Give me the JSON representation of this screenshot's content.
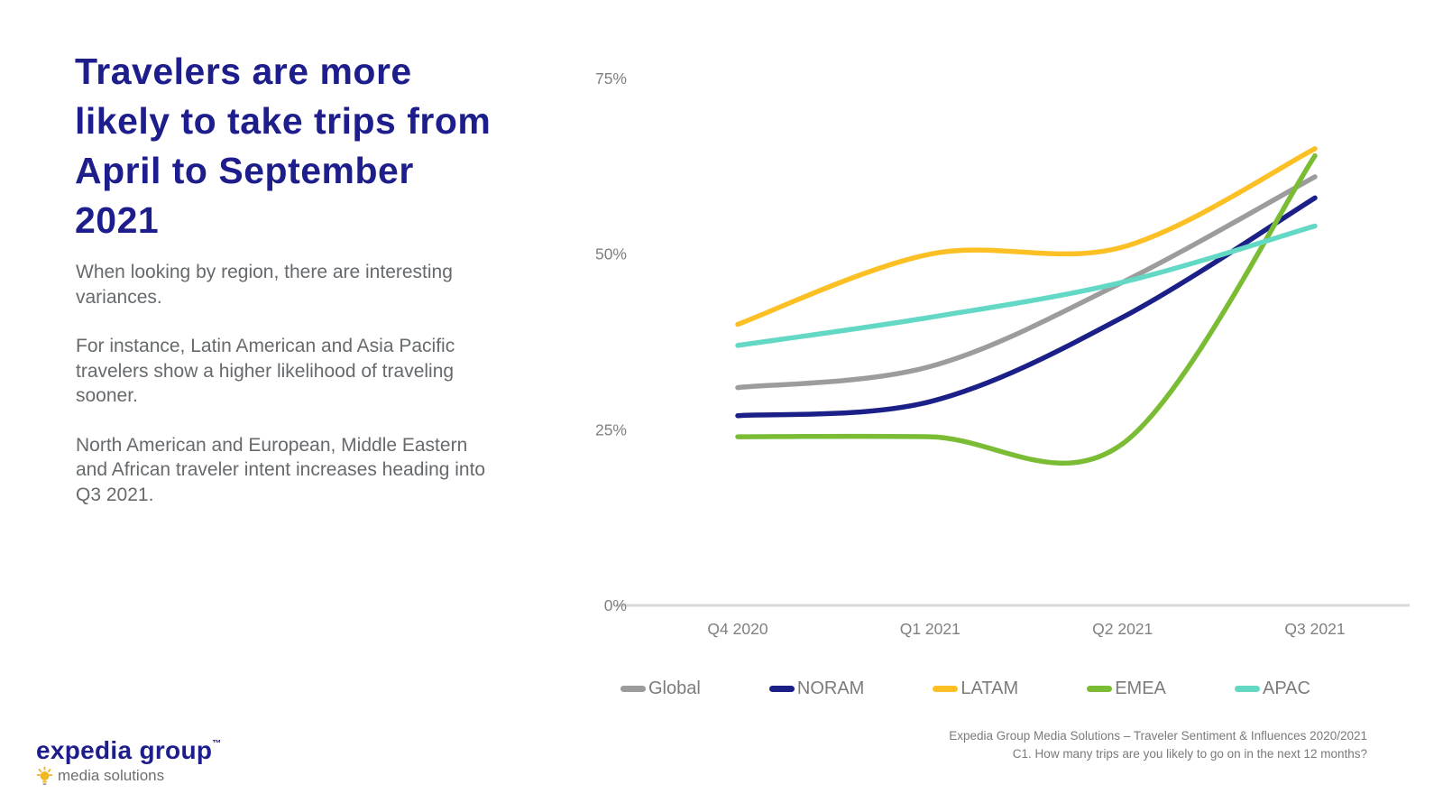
{
  "slide": {
    "title_lines": [
      "Travelers are more",
      "likely to take trips from",
      "April to September",
      "2021"
    ],
    "paragraphs": [
      "When looking by region, there are interesting variances.",
      "For instance, Latin American and Asia Pacific travelers show a higher likelihood of traveling sooner.",
      "North American and European, Middle Eastern and African traveler intent increases heading into Q3 2021."
    ]
  },
  "chart_data": {
    "type": "line",
    "smoothed": true,
    "categories": [
      "Q4 2020",
      "Q1 2021",
      "Q2 2021",
      "Q3 2021"
    ],
    "series": [
      {
        "name": "Global",
        "color": "#9c9c9c",
        "values": [
          31,
          34,
          46,
          61
        ]
      },
      {
        "name": "NORAM",
        "color": "#1b2088",
        "values": [
          27,
          29,
          41,
          58
        ]
      },
      {
        "name": "LATAM",
        "color": "#fcbf24",
        "values": [
          40,
          50,
          51,
          65
        ]
      },
      {
        "name": "EMEA",
        "color": "#7abd35",
        "values": [
          24,
          24,
          23,
          64
        ]
      },
      {
        "name": "APAC",
        "color": "#63d9c5",
        "values": [
          37,
          41,
          46,
          54
        ]
      }
    ],
    "y_ticks": [
      "0%",
      "25%",
      "50%",
      "75%"
    ],
    "y_tick_values": [
      0,
      25,
      50,
      75
    ],
    "ylim": [
      0,
      75
    ],
    "xlabel": "",
    "ylabel": "",
    "grid": "baseline-only",
    "legend_position": "bottom",
    "baseline_color": "#d9d9d9"
  },
  "footer": {
    "logo_title": "expedia group",
    "logo_tm": "™",
    "logo_subtitle": "media solutions",
    "source_line1": "Expedia Group Media Solutions – Traveler Sentiment & Influences 2020/2021",
    "source_line2": "C1. How many trips are you likely to go on in the next 12 months?"
  }
}
